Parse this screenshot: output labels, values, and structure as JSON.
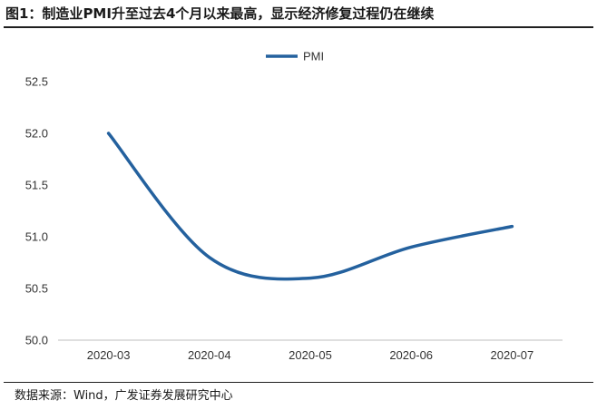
{
  "figure": {
    "title": "图1：制造业PMI升至过去4个月以来最高，显示经济修复过程仍在继续",
    "source": "数据来源：Wind，广发证券发展研究中心"
  },
  "colors": {
    "series": "#24619e",
    "axis": "#bfbfbf",
    "text": "#333333"
  },
  "chart_data": {
    "type": "line",
    "title": "",
    "xlabel": "",
    "ylabel": "",
    "categories": [
      "2020-03",
      "2020-04",
      "2020-05",
      "2020-06",
      "2020-07"
    ],
    "series": [
      {
        "name": "PMI",
        "values": [
          52.0,
          50.8,
          50.6,
          50.9,
          51.1
        ]
      }
    ],
    "ylim": [
      50.0,
      52.5
    ],
    "yticks": [
      "50.0",
      "50.5",
      "51.0",
      "51.5",
      "52.0",
      "52.5"
    ],
    "grid": false,
    "smooth": true,
    "legend_position": "top-center"
  }
}
